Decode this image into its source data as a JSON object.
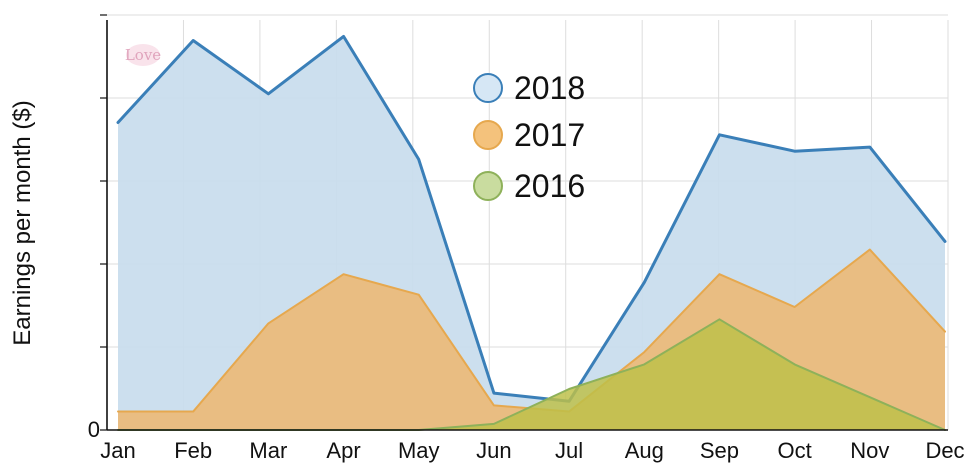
{
  "chart_data": {
    "type": "area",
    "categories": [
      "Jan",
      "Feb",
      "Mar",
      "Apr",
      "May",
      "Jun",
      "Jul",
      "Aug",
      "Sep",
      "Oct",
      "Nov",
      "Dec"
    ],
    "ylabel": "Earnings per month ($)",
    "ylim": [
      0,
      10
    ],
    "yticks": [
      0
    ],
    "legend_placement": "top-center",
    "grid": true,
    "watermark": "Love",
    "series": [
      {
        "name": "2018",
        "values": [
          7.5,
          9.5,
          8.2,
          9.6,
          6.6,
          0.9,
          0.7,
          3.6,
          7.2,
          6.8,
          6.9,
          4.6
        ],
        "stroke": "#3a7fb8",
        "fill": "#c8dced",
        "marker_fill": "#d6e7f5"
      },
      {
        "name": "2017",
        "values": [
          0.45,
          0.45,
          2.6,
          3.8,
          3.3,
          0.6,
          0.45,
          1.9,
          3.8,
          3.0,
          4.4,
          2.4
        ],
        "stroke": "#e6a84e",
        "fill": "#efb66a",
        "marker_fill": "#f4c27c"
      },
      {
        "name": "2016",
        "values": [
          0,
          0,
          0,
          0,
          0,
          0.15,
          1.0,
          1.6,
          2.7,
          1.6,
          0.8,
          0
        ],
        "stroke": "#8eb15a",
        "fill": "#bec049",
        "marker_fill": "#c9dc9f"
      }
    ]
  }
}
